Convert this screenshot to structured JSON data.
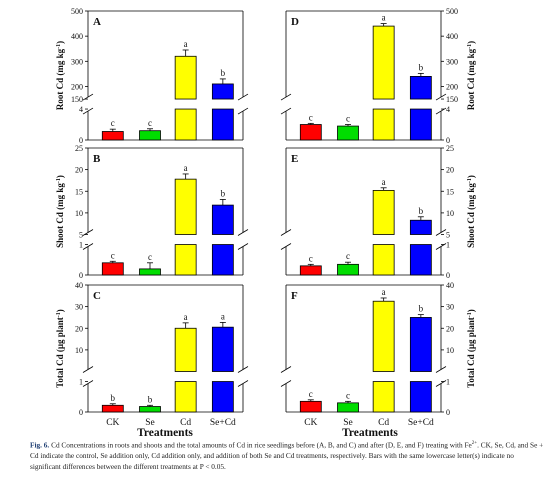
{
  "caption": {
    "label": "Fig. 6.",
    "text": "Cd Concentrations in roots and shoots and the total amounts of Cd in rice seedlings before (A, B, and C) and after (D, E, and F) treating with Fe",
    "sup": "2+",
    "text2": ". CK, Se, Cd, and Se + Cd indicate the control, Se addition only, Cd addition only, and addition of both Se and Cd treatments, respectively. Bars with the same lowercase letter(s) indicate no significant differences between the different treatments at P < 0.05."
  },
  "xaxis": {
    "title": "Treatments",
    "categories": [
      "CK",
      "Se",
      "Cd",
      "Se+Cd"
    ]
  },
  "colors": [
    "#ff0000",
    "#00dd00",
    "#ffff00",
    "#0000ff"
  ],
  "chart_data": [
    {
      "id": "A",
      "type": "bar",
      "panel_label": "A",
      "ylabel": "Root Cd (mg kg",
      "ylabel_sup": "-1",
      "ylabel_end": ")",
      "categories": [
        "CK",
        "Se",
        "Cd",
        "Se+Cd"
      ],
      "values": [
        1.1,
        1.2,
        320,
        210
      ],
      "errors": [
        0.3,
        0.25,
        25,
        20
      ],
      "letters": [
        "c",
        "c",
        "a",
        "b"
      ],
      "broken": true,
      "low_range": [
        0,
        4
      ],
      "high_range": [
        150,
        500
      ],
      "low_ticks": [
        0,
        4
      ],
      "high_ticks": [
        150,
        200,
        300,
        400,
        500
      ],
      "ytick_side": "left"
    },
    {
      "id": "D",
      "type": "bar",
      "panel_label": "D",
      "ylabel": "Root Cd (mg kg",
      "ylabel_sup": "-1",
      "ylabel_end": ")",
      "categories": [
        "CK",
        "Se",
        "Cd",
        "Se+Cd"
      ],
      "values": [
        2.0,
        1.8,
        440,
        240
      ],
      "errors": [
        0.15,
        0.2,
        10,
        12
      ],
      "letters": [
        "c",
        "c",
        "a",
        "b"
      ],
      "broken": true,
      "low_range": [
        0,
        4
      ],
      "high_range": [
        150,
        500
      ],
      "low_ticks": [
        0,
        4
      ],
      "high_ticks": [
        150,
        200,
        300,
        400,
        500
      ],
      "ytick_side": "right"
    },
    {
      "id": "B",
      "type": "bar",
      "panel_label": "B",
      "ylabel": "Shoot Cd (mg kg",
      "ylabel_sup": "-1",
      "ylabel_end": ")",
      "categories": [
        "CK",
        "Se",
        "Cd",
        "Se+Cd"
      ],
      "values": [
        0.4,
        0.2,
        17.8,
        11.8
      ],
      "errors": [
        0.05,
        0.2,
        1.2,
        1.3
      ],
      "letters": [
        "c",
        "c",
        "a",
        "b"
      ],
      "broken": true,
      "low_range": [
        0,
        1
      ],
      "high_range": [
        5,
        25
      ],
      "low_ticks": [
        0,
        1
      ],
      "high_ticks": [
        5,
        10,
        15,
        20,
        25
      ],
      "ytick_side": "left"
    },
    {
      "id": "E",
      "type": "bar",
      "panel_label": "E",
      "ylabel": "Shoot Cd (mg kg",
      "ylabel_sup": "-1",
      "ylabel_end": ")",
      "categories": [
        "CK",
        "Se",
        "Cd",
        "Se+Cd"
      ],
      "values": [
        0.3,
        0.35,
        15.2,
        8.3
      ],
      "errors": [
        0.05,
        0.07,
        0.6,
        0.8
      ],
      "letters": [
        "c",
        "c",
        "a",
        "b"
      ],
      "broken": true,
      "low_range": [
        0,
        1
      ],
      "high_range": [
        5,
        25
      ],
      "low_ticks": [
        0,
        1
      ],
      "high_ticks": [
        5,
        10,
        15,
        20,
        25
      ],
      "ytick_side": "right"
    },
    {
      "id": "C",
      "type": "bar",
      "panel_label": "C",
      "ylabel": "Total Cd (µg plant",
      "ylabel_sup": "-1",
      "ylabel_end": ")",
      "categories": [
        "CK",
        "Se",
        "Cd",
        "Se+Cd"
      ],
      "values": [
        0.22,
        0.18,
        20,
        20.5
      ],
      "errors": [
        0.05,
        0.04,
        2.5,
        2.2
      ],
      "letters": [
        "b",
        "b",
        "a",
        "a"
      ],
      "broken": true,
      "low_range": [
        0,
        1
      ],
      "high_range": [
        0,
        40
      ],
      "low_ticks": [
        0,
        1
      ],
      "high_ticks": [
        10,
        20,
        30,
        40
      ],
      "ytick_side": "left"
    },
    {
      "id": "F",
      "type": "bar",
      "panel_label": "F",
      "ylabel": "Total Cd (µg plant",
      "ylabel_sup": "-1",
      "ylabel_end": ")",
      "categories": [
        "CK",
        "Se",
        "Cd",
        "Se+Cd"
      ],
      "values": [
        0.35,
        0.3,
        32.5,
        25
      ],
      "errors": [
        0.05,
        0.05,
        1.5,
        1.3
      ],
      "letters": [
        "c",
        "c",
        "a",
        "b"
      ],
      "broken": true,
      "low_range": [
        0,
        1
      ],
      "high_range": [
        0,
        40
      ],
      "low_ticks": [
        0,
        1
      ],
      "high_ticks": [
        10,
        20,
        30,
        40
      ],
      "ytick_side": "right"
    }
  ]
}
